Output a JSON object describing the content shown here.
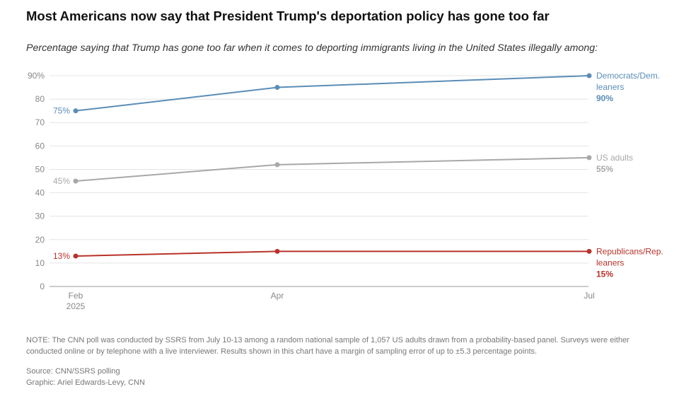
{
  "chart_data": {
    "type": "line",
    "title": "Most Americans now say that President Trump's deportation policy has gone too far",
    "subtitle": "Percentage saying that Trump has gone too far when it comes to deporting immigrants living in the United States illegally among:",
    "x_labels": [
      [
        "Feb",
        "2025"
      ],
      [
        "Apr"
      ],
      [
        "Jul"
      ]
    ],
    "ylim": [
      0,
      90
    ],
    "y_ticks": [
      0,
      10,
      20,
      30,
      40,
      50,
      60,
      70,
      80,
      90
    ],
    "y_tick_labels": [
      "0",
      "10",
      "20",
      "30",
      "40",
      "50",
      "60",
      "70",
      "80",
      "90%"
    ],
    "grid": true,
    "series": [
      {
        "name": "Democrats/Dem. leaners",
        "name_lines": [
          "Democrats/Dem.",
          "leaners"
        ],
        "values": [
          75,
          85,
          90
        ],
        "start_label": "75%",
        "end_label": "90%",
        "color": "#5a8db7"
      },
      {
        "name": "US adults",
        "name_lines": [
          "US adults"
        ],
        "values": [
          45,
          52,
          55
        ],
        "start_label": "45%",
        "end_label": "55%",
        "color": "#a8a8a8"
      },
      {
        "name": "Republicans/Rep. leaners",
        "name_lines": [
          "Republicans/Rep.",
          "leaners"
        ],
        "values": [
          13,
          15,
          15
        ],
        "start_label": "13%",
        "end_label": "15%",
        "color": "#b8322a"
      }
    ]
  },
  "note": "NOTE: The CNN poll was conducted by SSRS from July 10-13 among a random national sample of 1,057 US adults drawn from a probability-based panel. Surveys were either conducted online or by telephone with a live interviewer. Results shown in this chart have a margin of sampling error of up to ±5.3 percentage points.",
  "source": "Source: CNN/SSRS polling",
  "graphic": "Graphic: Ariel Edwards-Levy, CNN"
}
